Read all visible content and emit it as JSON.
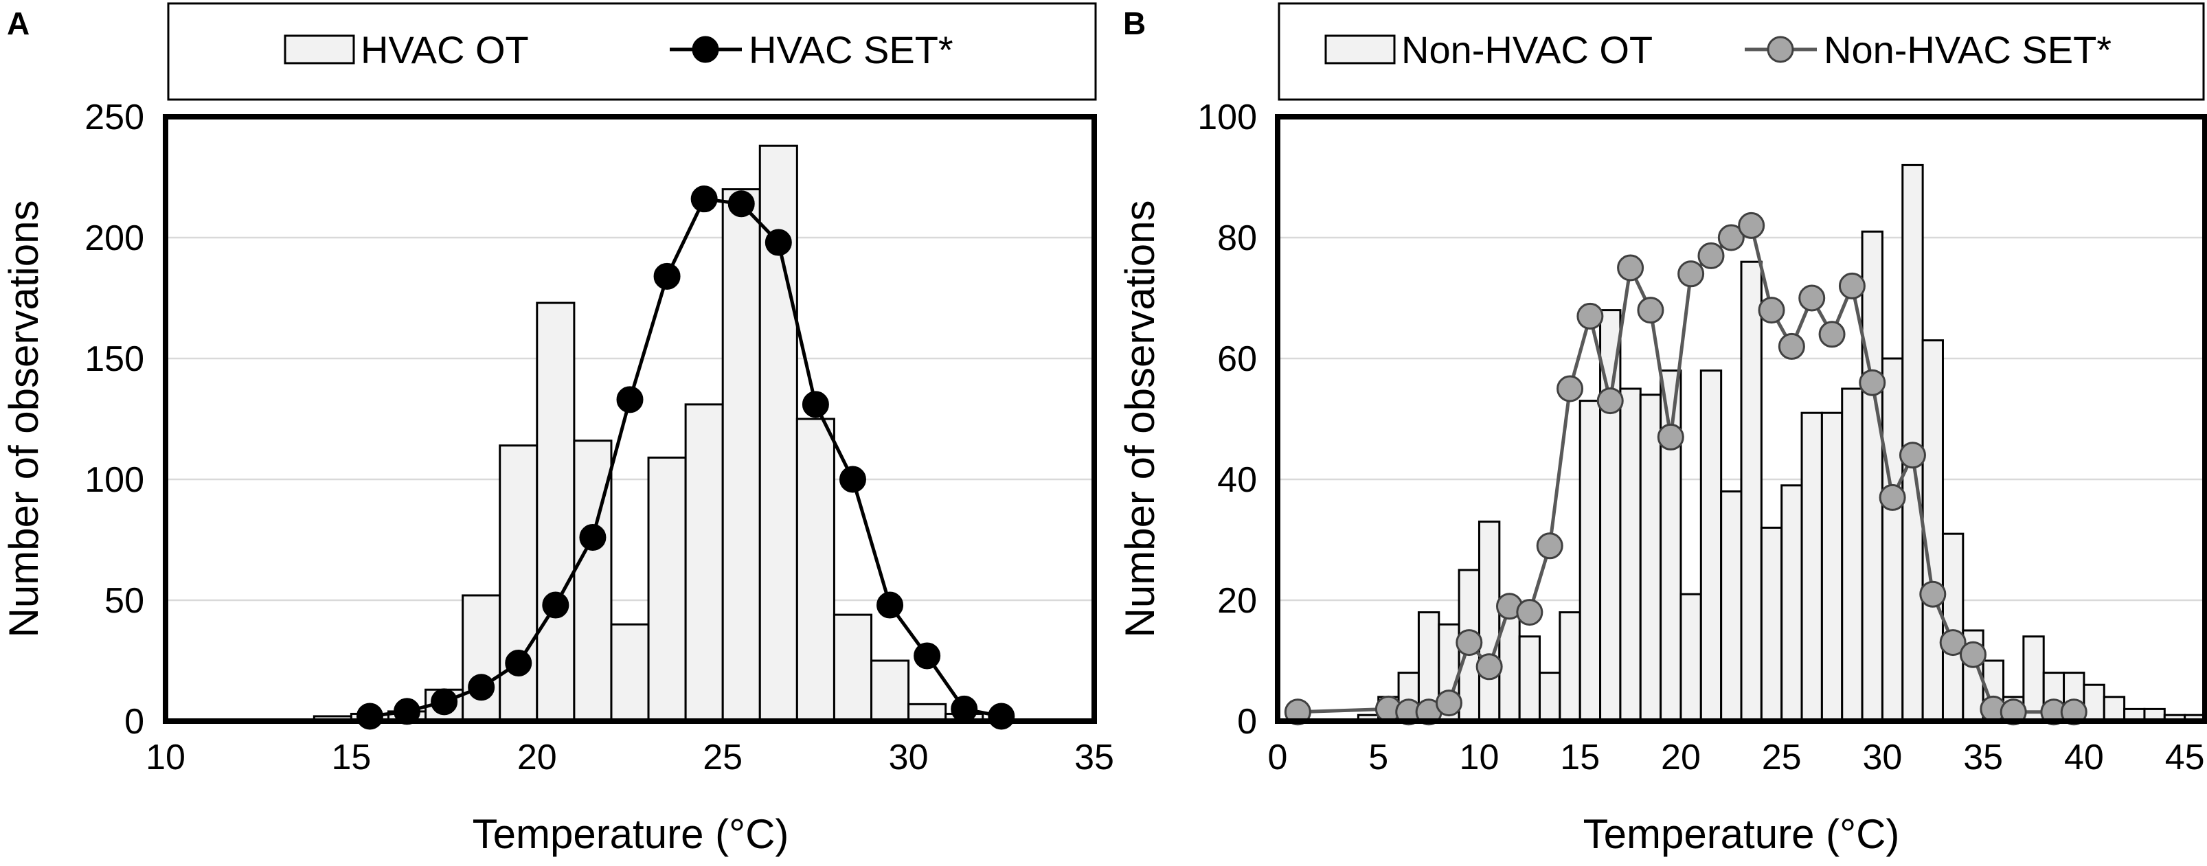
{
  "chart_data": [
    {
      "type": "bar",
      "panel_label": "A",
      "title": "",
      "xlabel": "Temperature (°C)",
      "ylabel": "Number of observations",
      "xlim": [
        10,
        35
      ],
      "ylim": [
        0,
        250
      ],
      "x_ticks": [
        10,
        15,
        20,
        25,
        30,
        35
      ],
      "y_ticks": [
        0,
        50,
        100,
        150,
        200,
        250
      ],
      "grid": true,
      "legend_position": "top",
      "bin_width": 1,
      "series": [
        {
          "name": "HVAC OT",
          "kind": "histogram",
          "color": "#f2f2f2",
          "x": [
            14,
            15,
            16,
            17,
            18,
            19,
            20,
            21,
            22,
            23,
            24,
            25,
            26,
            27,
            28,
            29,
            30,
            31
          ],
          "values": [
            2,
            3,
            4,
            13,
            52,
            114,
            173,
            116,
            40,
            109,
            131,
            220,
            238,
            125,
            44,
            25,
            7,
            3
          ]
        },
        {
          "name": "HVAC SET*",
          "kind": "line-marker",
          "color": "#000000",
          "marker_fill": "#000000",
          "x": [
            15.5,
            16.5,
            17.5,
            18.5,
            19.5,
            20.5,
            21.5,
            22.5,
            23.5,
            24.5,
            25.5,
            26.5,
            27.5,
            28.5,
            29.5,
            30.5,
            31.5,
            32.5
          ],
          "values": [
            2,
            4,
            8,
            14,
            24,
            48,
            76,
            133,
            184,
            216,
            214,
            198,
            131,
            100,
            48,
            27,
            5,
            2
          ]
        }
      ]
    },
    {
      "type": "bar",
      "panel_label": "B",
      "title": "",
      "xlabel": "Temperature (°C)",
      "ylabel": "Number of observations",
      "xlim": [
        0,
        46
      ],
      "ylim": [
        0,
        100
      ],
      "x_ticks": [
        0,
        5,
        10,
        15,
        20,
        25,
        30,
        35,
        40,
        45
      ],
      "y_ticks": [
        0,
        20,
        40,
        60,
        80,
        100
      ],
      "grid": true,
      "legend_position": "top",
      "bin_width": 1,
      "series": [
        {
          "name": "Non-HVAC OT",
          "kind": "histogram",
          "color": "#f2f2f2",
          "x": [
            4,
            5,
            6,
            7,
            8,
            9,
            10,
            11,
            12,
            13,
            14,
            15,
            16,
            17,
            18,
            19,
            20,
            21,
            22,
            23,
            24,
            25,
            26,
            27,
            28,
            29,
            30,
            31,
            32,
            33,
            34,
            35,
            36,
            37,
            38,
            39,
            40,
            41,
            42,
            43,
            44,
            45
          ],
          "values": [
            1,
            4,
            8,
            18,
            16,
            25,
            33,
            20,
            14,
            8,
            18,
            53,
            68,
            55,
            54,
            58,
            21,
            58,
            38,
            76,
            32,
            39,
            51,
            51,
            55,
            81,
            60,
            92,
            63,
            31,
            15,
            10,
            4,
            14,
            8,
            8,
            6,
            4,
            2,
            2,
            1,
            1
          ]
        },
        {
          "name": "Non-HVAC SET*",
          "kind": "line-marker",
          "color": "#595959",
          "marker_fill": "#a6a6a6",
          "x": [
            1,
            5.5,
            6.5,
            7.5,
            8.5,
            9.5,
            10.5,
            11.5,
            12.5,
            13.5,
            14.5,
            15.5,
            16.5,
            17.5,
            18.5,
            19.5,
            20.5,
            21.5,
            22.5,
            23.5,
            24.5,
            25.5,
            26.5,
            27.5,
            28.5,
            29.5,
            30.5,
            31.5,
            32.5,
            33.5,
            34.5,
            35.5,
            36.5,
            38.5,
            39.5
          ],
          "values": [
            1.5,
            2,
            1.5,
            1.5,
            3,
            13,
            9,
            19,
            18,
            29,
            55,
            67,
            53,
            75,
            68,
            47,
            74,
            77,
            80,
            82,
            68,
            62,
            70,
            64,
            72,
            56,
            37,
            44,
            21,
            13,
            11,
            2,
            1.5,
            1.5,
            1.5
          ]
        }
      ]
    }
  ]
}
